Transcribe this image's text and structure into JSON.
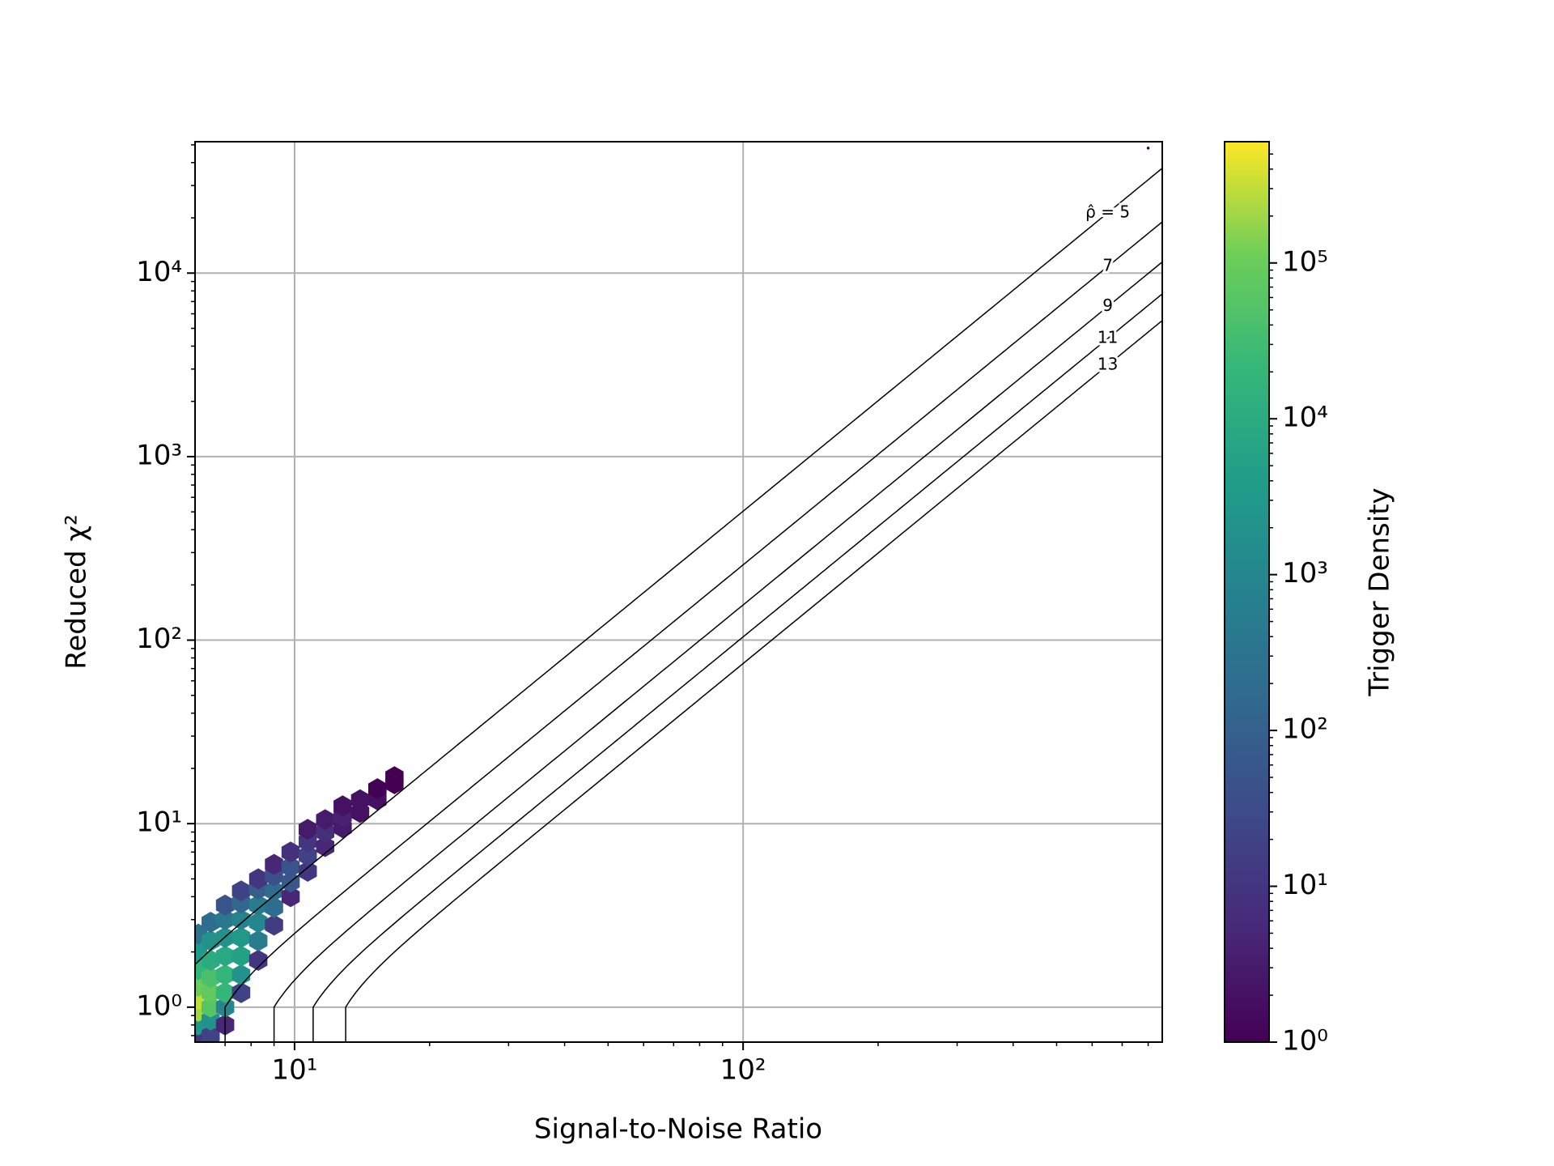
{
  "chart_data": {
    "type": "hexbin",
    "xlabel": "Signal-to-Noise Ratio",
    "ylabel": "Reduced χ²",
    "xscale": "log",
    "yscale": "log",
    "xlim": [
      6,
      860
    ],
    "ylim": [
      0.645,
      52000
    ],
    "xticks": [
      {
        "value": 10,
        "label": "10¹"
      },
      {
        "value": 100,
        "label": "10²"
      }
    ],
    "yticks": [
      {
        "value": 1,
        "label": "10⁰"
      },
      {
        "value": 10,
        "label": "10¹"
      },
      {
        "value": 100,
        "label": "10²"
      },
      {
        "value": 1000,
        "label": "10³"
      },
      {
        "value": 10000,
        "label": "10⁴"
      }
    ],
    "grid": true,
    "colormap": "viridis",
    "colorbar": {
      "label": "Trigger Density",
      "scale": "log",
      "lim": [
        1,
        600000
      ],
      "ticks": [
        {
          "value": 1,
          "label": "10⁰"
        },
        {
          "value": 10,
          "label": "10¹"
        },
        {
          "value": 100,
          "label": "10²"
        },
        {
          "value": 1000,
          "label": "10³"
        },
        {
          "value": 10000,
          "label": "10⁴"
        },
        {
          "value": 100000,
          "label": "10⁵"
        }
      ]
    },
    "x": [
      6.1,
      6.1,
      6.1,
      6.1,
      6.1,
      6.1,
      6.1,
      6.1,
      6.5,
      6.5,
      6.5,
      6.5,
      6.5,
      6.5,
      6.5,
      6.5,
      7.0,
      7.0,
      7.0,
      7.0,
      7.0,
      7.0,
      7.0,
      7.0,
      7.6,
      7.6,
      7.6,
      7.6,
      7.6,
      7.6,
      7.6,
      8.3,
      8.3,
      8.3,
      8.3,
      8.3,
      8.3,
      9.0,
      9.0,
      9.0,
      9.0,
      9.0,
      9.8,
      9.8,
      9.8,
      9.8,
      10.7,
      10.7,
      10.7,
      10.7,
      11.7,
      11.7,
      11.7,
      12.8,
      12.8,
      12.8,
      14,
      14,
      15.3,
      15.3,
      16.7,
      16.7,
      800
    ],
    "y": [
      0.7,
      0.8,
      0.95,
      1.1,
      1.3,
      1.6,
      2.0,
      2.5,
      0.7,
      0.85,
      1.0,
      1.2,
      1.45,
      1.8,
      2.3,
      2.9,
      0.8,
      1.0,
      1.2,
      1.5,
      1.9,
      2.4,
      3.0,
      3.6,
      1.2,
      1.5,
      1.9,
      2.4,
      3.0,
      3.7,
      4.3,
      1.8,
      2.3,
      2.9,
      3.6,
      4.4,
      5.0,
      2.8,
      3.5,
      4.3,
      5.2,
      6.0,
      4.0,
      4.8,
      5.8,
      7.0,
      5.5,
      6.7,
      8.0,
      9.3,
      7.5,
      9.0,
      10.5,
      9.5,
      11,
      12.5,
      11.5,
      13.5,
      13.5,
      15.5,
      16.5,
      18,
      48000
    ],
    "counts": [
      10,
      3000,
      200000,
      300000,
      100000,
      20000,
      3000,
      300,
      20,
      2000,
      60000,
      80000,
      40000,
      10000,
      2000,
      200,
      5,
      1000,
      20000,
      20000,
      8000,
      2000,
      400,
      50,
      20,
      2000,
      5000,
      3000,
      800,
      150,
      20,
      10,
      500,
      1000,
      500,
      80,
      10,
      15,
      200,
      200,
      40,
      5,
      5,
      60,
      50,
      8,
      10,
      20,
      10,
      3,
      5,
      8,
      3,
      3,
      4,
      2,
      2,
      2,
      2,
      1,
      1,
      1,
      1
    ],
    "contours": {
      "color": "#000000",
      "levels": [
        {
          "value": 5,
          "label": "ρ̂ = 5"
        },
        7,
        9,
        11,
        13
      ]
    }
  }
}
